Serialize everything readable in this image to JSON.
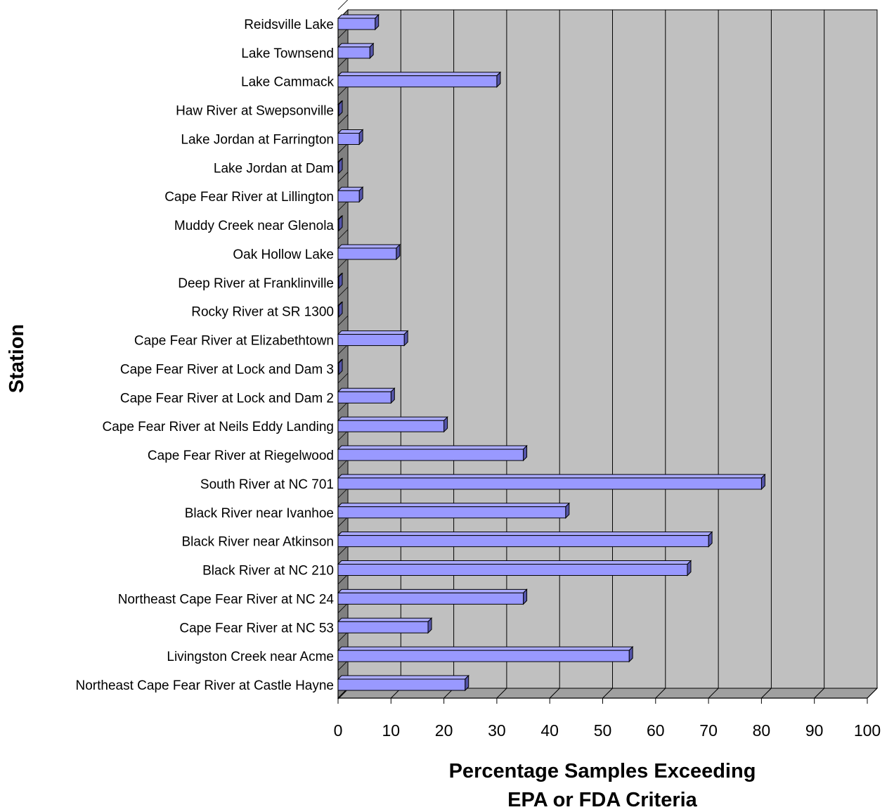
{
  "chart_data": {
    "type": "bar",
    "orientation": "horizontal",
    "three_d": true,
    "categories": [
      "Reidsville Lake",
      "Lake Townsend",
      "Lake Cammack",
      "Haw River at Swepsonville",
      "Lake Jordan at Farrington",
      "Lake Jordan at Dam",
      "Cape Fear River at Lillington",
      "Muddy Creek near Glenola",
      "Oak Hollow Lake",
      "Deep River at Franklinville",
      "Rocky River at SR 1300",
      "Cape Fear River at Elizabethtown",
      "Cape Fear River at Lock and Dam 3",
      "Cape Fear River at Lock and Dam 2",
      "Cape Fear River at Neils Eddy Landing",
      "Cape Fear River at Riegelwood",
      "South River at NC 701",
      "Black River near Ivanhoe",
      "Black River near Atkinson",
      "Black River at NC 210",
      "Northeast Cape Fear River at NC 24",
      "Cape Fear River at NC 53",
      "Livingston Creek near Acme",
      "Northeast Cape Fear River at Castle Hayne"
    ],
    "values": [
      7,
      6,
      30,
      0,
      4,
      0,
      4,
      0,
      11,
      0,
      0,
      12.5,
      0,
      10,
      20,
      35,
      80,
      43,
      70,
      66,
      35,
      17,
      55,
      24
    ],
    "xlim": [
      0,
      100
    ],
    "x_ticks": [
      "0",
      "10",
      "20",
      "30",
      "40",
      "50",
      "60",
      "70",
      "80",
      "90",
      "100"
    ],
    "ylabel": "Station",
    "xlabel_lines": [
      "Percentage Samples Exceeding",
      "EPA or FDA Criteria"
    ],
    "grid": "vertical",
    "colors": {
      "bar_face": "#9999ff",
      "bar_top": "#aaaaff",
      "bar_side": "#5555aa",
      "plot_back": "#c0c0c0",
      "plot_wall": "#808080",
      "plot_floor": "#a0a0a0",
      "grid": "#000000"
    }
  }
}
